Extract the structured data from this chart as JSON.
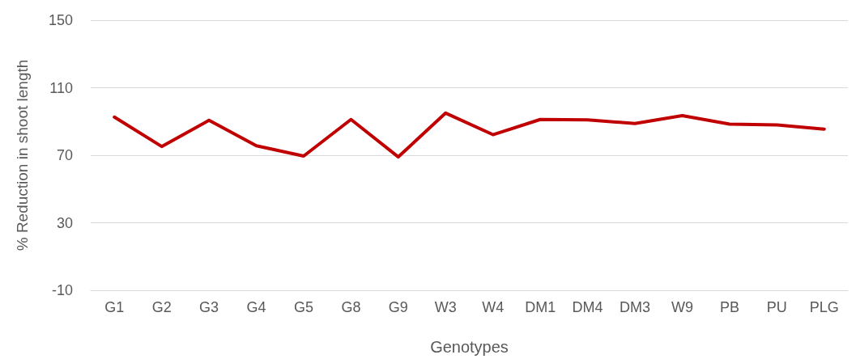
{
  "chart_data": {
    "type": "line",
    "xlabel": "Genotypes",
    "ylabel": "% Reduction in shoot length",
    "categories": [
      "G1",
      "G2",
      "G3",
      "G4",
      "G5",
      "G8",
      "G9",
      "W3",
      "W4",
      "DM1",
      "DM4",
      "DM3",
      "W9",
      "PB",
      "PU",
      "PLG"
    ],
    "series": [
      {
        "color": "#c00000",
        "values": [
          92.6,
          75.2,
          90.7,
          75.6,
          69.5,
          91.2,
          69,
          95,
          82.2,
          91.2,
          91,
          88.8,
          93.5,
          88.4,
          88,
          85.5
        ]
      }
    ],
    "ylim": [
      -10,
      150
    ],
    "yticks": [
      -10,
      30,
      70,
      110,
      150
    ],
    "grid": "y",
    "marker": "none",
    "line_style": "solid"
  }
}
